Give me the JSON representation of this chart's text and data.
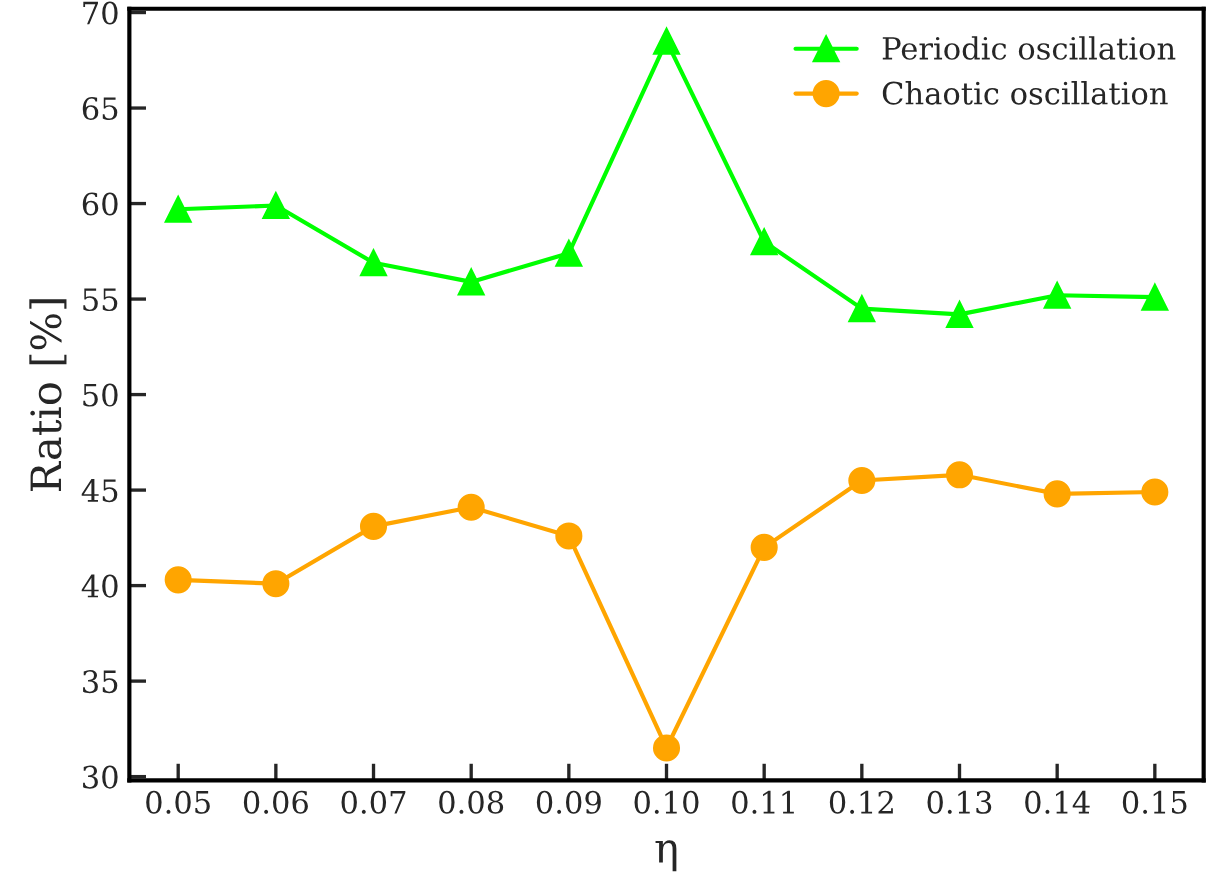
{
  "chart_data": {
    "type": "line",
    "xlabel": "η",
    "ylabel": "Ratio [%]",
    "x": [
      0.05,
      0.06,
      0.07,
      0.08,
      0.09,
      0.1,
      0.11,
      0.12,
      0.13,
      0.14,
      0.15
    ],
    "series": [
      {
        "name": "Periodic oscillation",
        "color": "#00ff00",
        "marker": "triangle",
        "values": [
          59.7,
          59.9,
          56.9,
          55.9,
          57.4,
          68.5,
          58.0,
          54.5,
          54.2,
          55.2,
          55.1
        ]
      },
      {
        "name": "Chaotic oscillation",
        "color": "#ffa500",
        "marker": "circle",
        "values": [
          40.3,
          40.1,
          43.1,
          44.1,
          42.6,
          31.5,
          42.0,
          45.5,
          45.8,
          44.8,
          44.9
        ]
      }
    ],
    "xlim": [
      0.045,
      0.155
    ],
    "xticks": [
      {
        "value": 0.05,
        "label": "0.05"
      },
      {
        "value": 0.06,
        "label": "0.06"
      },
      {
        "value": 0.07,
        "label": "0.07"
      },
      {
        "value": 0.08,
        "label": "0.08"
      },
      {
        "value": 0.09,
        "label": "0.09"
      },
      {
        "value": 0.1,
        "label": "0.10"
      },
      {
        "value": 0.11,
        "label": "0.11"
      },
      {
        "value": 0.12,
        "label": "0.12"
      },
      {
        "value": 0.13,
        "label": "0.13"
      },
      {
        "value": 0.14,
        "label": "0.14"
      },
      {
        "value": 0.15,
        "label": "0.15"
      }
    ],
    "ylim": [
      29.8,
      70.2
    ],
    "yticks": [
      30,
      35,
      40,
      45,
      50,
      55,
      60,
      65,
      70
    ],
    "legend": "top right",
    "grid": false,
    "line_style": "solid"
  }
}
